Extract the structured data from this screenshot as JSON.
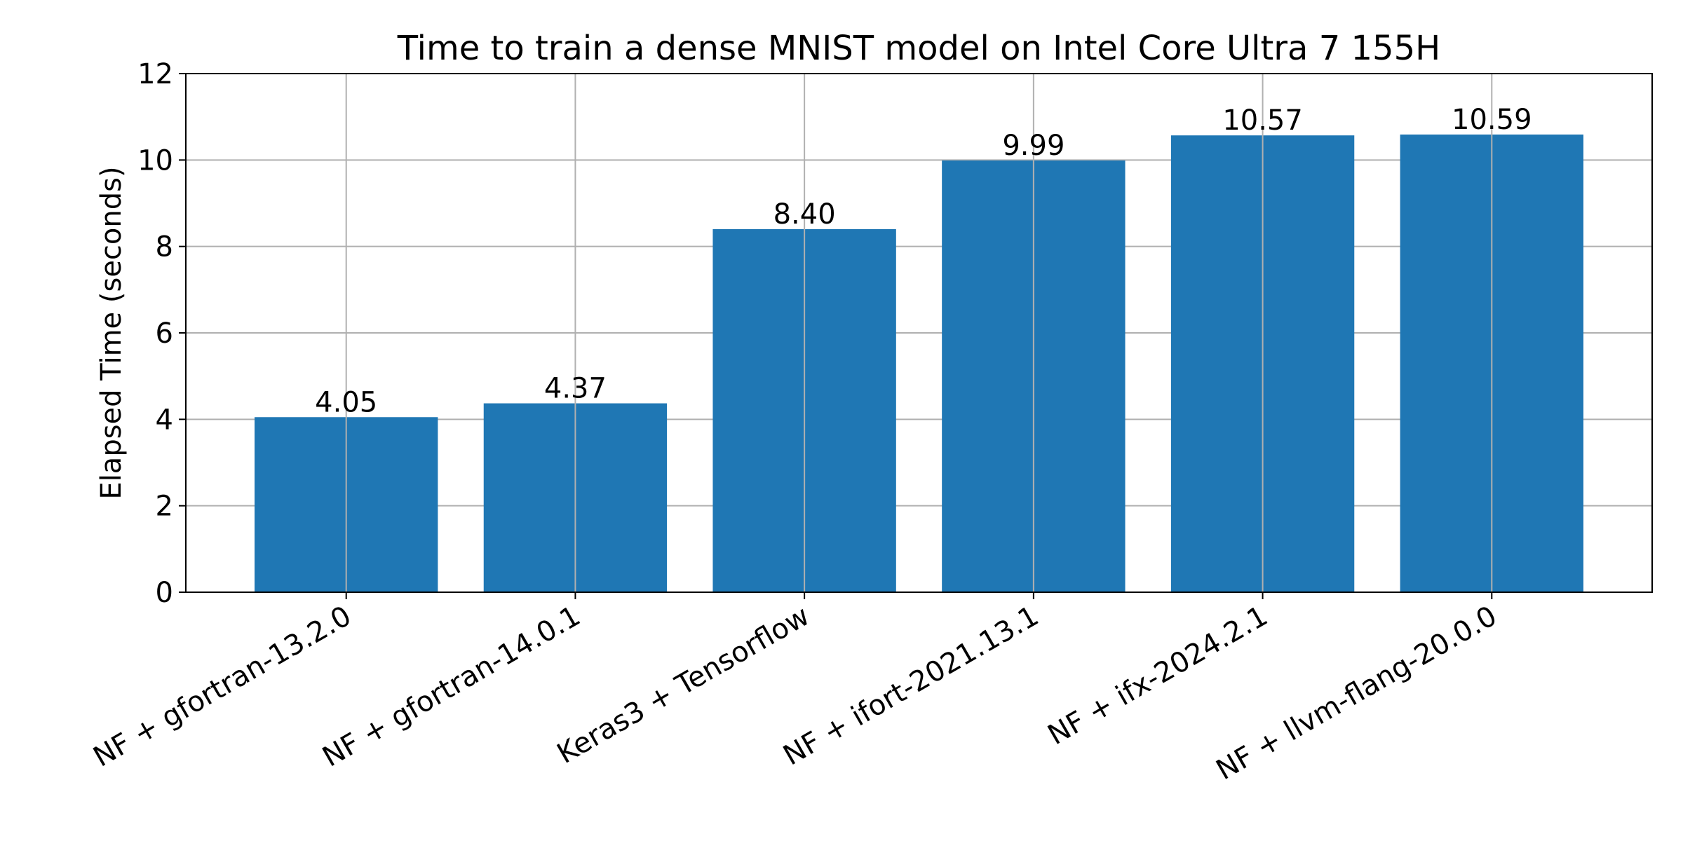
{
  "chart_data": {
    "type": "bar",
    "title": "Time to train a dense MNIST model on Intel Core Ultra 7 155H",
    "xlabel": "",
    "ylabel": "Elapsed Time (seconds)",
    "categories": [
      "NF + gfortran-13.2.0",
      "NF + gfortran-14.0.1",
      "Keras3 + Tensorflow",
      "NF + ifort-2021.13.1",
      "NF + ifx-2024.2.1",
      "NF + llvm-flang-20.0.0"
    ],
    "values": [
      4.05,
      4.37,
      8.4,
      9.99,
      10.57,
      10.59
    ],
    "data_labels": [
      "4.05",
      "4.37",
      "8.40",
      "9.99",
      "10.57",
      "10.59"
    ],
    "ylim": [
      0,
      12
    ],
    "yticks": [
      "0",
      "2",
      "4",
      "6",
      "8",
      "10",
      "12"
    ],
    "grid": true,
    "bar_color": "#1f77b4",
    "grid_color": "#b0b0b0"
  }
}
